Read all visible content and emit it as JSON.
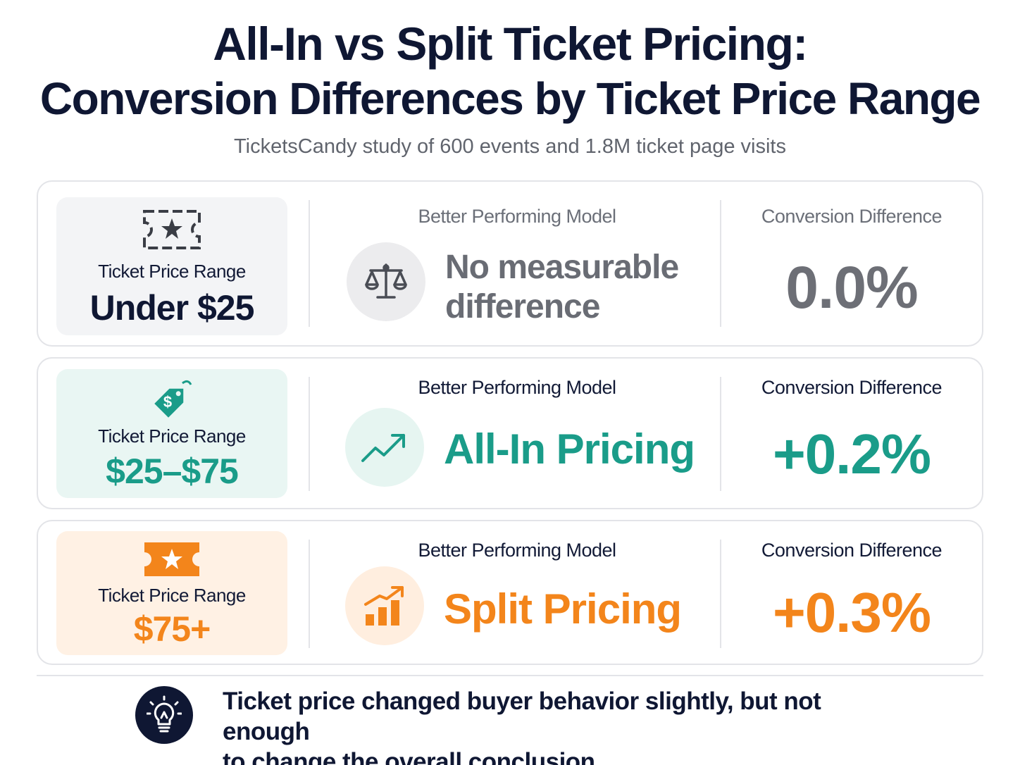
{
  "header": {
    "title_line1": "All-In vs Split Ticket Pricing:",
    "title_line2": "Conversion Differences by Ticket Price Range",
    "subtitle": "TicketsCandy study of 600 events and 1.8M ticket page visits"
  },
  "rows": [
    {
      "range_icon": "ticket-star-outline-icon",
      "range_label": "Ticket Price Range",
      "range_value": "Under $25",
      "model_heading": "Better Performing Model",
      "model_icon": "balance-scale-icon",
      "model_line1": "No measurable",
      "model_line2": "difference",
      "diff_heading": "Conversion Difference",
      "diff_value": "0.0%",
      "accent": "#6d6f76"
    },
    {
      "range_icon": "price-tag-icon",
      "range_label": "Ticket Price Range",
      "range_value": "$25–$75",
      "model_heading": "Better Performing Model",
      "model_icon": "trend-up-icon",
      "model_value": "All-In Pricing",
      "diff_heading": "Conversion Difference",
      "diff_value": "+0.2%",
      "accent": "#1a9c89"
    },
    {
      "range_icon": "ticket-star-filled-icon",
      "range_label": "Ticket Price Range",
      "range_value": "$75+",
      "model_heading": "Better Performing Model",
      "model_icon": "bar-chart-growth-icon",
      "model_value": "Split Pricing",
      "diff_heading": "Conversion Difference",
      "diff_value": "+0.3%",
      "accent": "#f3851b"
    }
  ],
  "footer": {
    "icon": "lightbulb-icon",
    "takeaway_line1": "Ticket price changed buyer behavior slightly, but not enough",
    "takeaway_line2": "to change the overall conclusion."
  }
}
